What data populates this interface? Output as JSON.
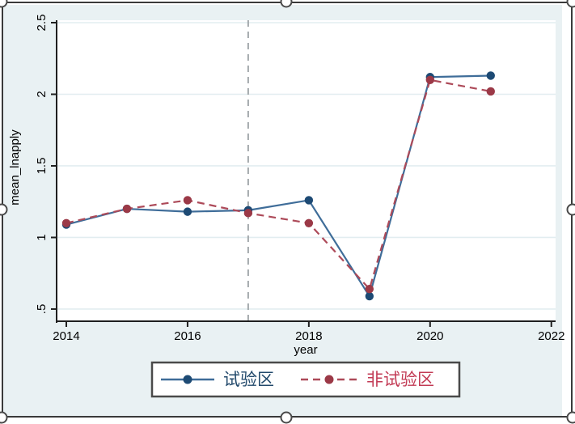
{
  "document": {
    "selection": {
      "handle_names": [
        "top-left",
        "top-center",
        "top-right",
        "middle-left",
        "middle-right",
        "bottom-left",
        "bottom-center",
        "bottom-right"
      ]
    }
  },
  "chart_data": {
    "type": "line",
    "title": "",
    "xlabel": "year",
    "ylabel": "mean_lnapply",
    "x": [
      2014,
      2015,
      2016,
      2017,
      2018,
      2019,
      2020,
      2021
    ],
    "series": [
      {
        "name": "试验区",
        "dash": "solid",
        "marker": "circle",
        "line_color": "#3f6d99",
        "marker_color": "#1d4a74",
        "label_color": "#22496b",
        "values": [
          1.09,
          1.2,
          1.18,
          1.19,
          1.26,
          0.59,
          2.12,
          2.13
        ]
      },
      {
        "name": "非试验区",
        "dash": "dashed",
        "marker": "circle",
        "line_color": "#ad4a59",
        "marker_color": "#9b3947",
        "label_color": "#c23a54",
        "values": [
          1.1,
          1.2,
          1.26,
          1.17,
          1.1,
          0.64,
          2.1,
          2.02
        ]
      }
    ],
    "xticks": [
      2014,
      2016,
      2018,
      2020,
      2022
    ],
    "ytick_labels": [
      ".5",
      "1",
      "1.5",
      "2",
      "2.5"
    ],
    "ytick_values": [
      0.5,
      1.0,
      1.5,
      2.0,
      2.5
    ],
    "xlim": [
      2013.84,
      2022.07
    ],
    "ylim": [
      0.415,
      2.517
    ],
    "vline_x": 2017,
    "grid": true,
    "legend_position": "bottom-center",
    "colors": {
      "graph_background": "#e9f1f3",
      "plot_background": "#ffffff",
      "gridline": "#e2edf0",
      "axis": "#1f1f1f",
      "tick_text": "#000000",
      "vline": "#a4a9ac",
      "legend_border": "#4a4a4a",
      "legend_fill": "#ffffff"
    }
  }
}
